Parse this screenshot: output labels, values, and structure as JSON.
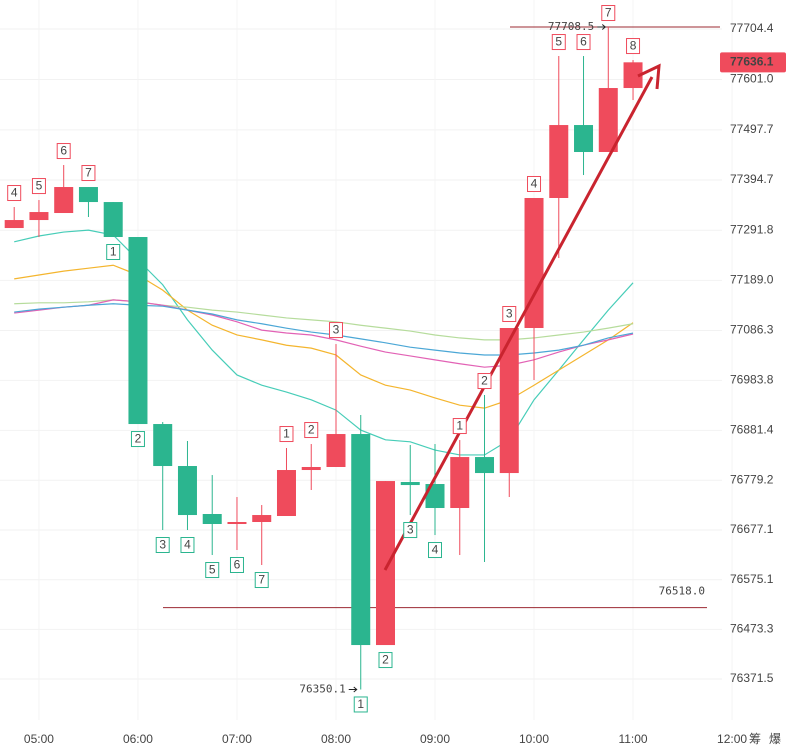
{
  "chart_data": {
    "type": "candlestick",
    "x": [
      285,
      300,
      315,
      330,
      345,
      360,
      375,
      390,
      405,
      420,
      435,
      450,
      465,
      480,
      495,
      510,
      525,
      540,
      555,
      570,
      585,
      600,
      615,
      630,
      645,
      660
    ],
    "open": [
      77296.3,
      77312.7,
      77327.1,
      77380.4,
      77349.6,
      77277.9,
      76894.4,
      76808.3,
      76709.9,
      76689.4,
      76693.5,
      76705.8,
      76800.1,
      76806.3,
      76873.9,
      76441.2,
      76775.5,
      76771.4,
      76722.2,
      76826.7,
      76793.9,
      77091.3,
      77357.9,
      77507.5,
      77452.2,
      77583.4
    ],
    "high": [
      77339.4,
      77353.7,
      77425.5,
      77380.4,
      77349.6,
      77277.9,
      76898.5,
      76859.6,
      76789.8,
      76744.7,
      76728.3,
      76845.2,
      76853.4,
      77058.4,
      76912.9,
      76777.5,
      76851.4,
      76853.4,
      76861.6,
      76953.9,
      77091.3,
      77357.9,
      77649.0,
      77649.0,
      77708.5,
      77640.8
    ],
    "low": [
      77296.3,
      77277.9,
      77327.1,
      77318.9,
      77277.9,
      76894.4,
      76677.1,
      76677.1,
      76625.8,
      76636.1,
      76605.3,
      76705.8,
      76759.1,
      76806.3,
      76350.1,
      76441.2,
      76707.8,
      76666.8,
      76625.8,
      76611.5,
      76744.7,
      76984.6,
      77234.8,
      77405.0,
      77452.2,
      77558.8
    ],
    "close": [
      77312.7,
      77329.1,
      77380.4,
      77349.6,
      77277.9,
      76894.4,
      76808.3,
      76707.8,
      76689.4,
      76693.5,
      76707.8,
      76800.1,
      76806.3,
      76873.9,
      76441.2,
      76777.5,
      76769.3,
      76722.2,
      76826.7,
      76793.9,
      77091.3,
      77357.9,
      77507.5,
      77452.2,
      77583.4,
      77636.1
    ],
    "up_color": "#ef4b5c",
    "down_color": "#2bb58f",
    "ma": [
      {
        "color": "#47cdb8",
        "values": [
          77268,
          77280,
          77288,
          77292,
          77282,
          77231,
          77180,
          77108,
          77046,
          76995,
          76974,
          76960,
          76944,
          76923,
          76882,
          76862,
          76858,
          76841,
          76831,
          76831,
          76862,
          76944,
          77005,
          77067,
          77128,
          77184
        ]
      },
      {
        "color": "#f4b52e",
        "values": [
          77192,
          77200,
          77208,
          77214,
          77220,
          77200,
          77169,
          77128,
          77097,
          77077,
          77067,
          77056,
          77050,
          77036,
          76995,
          76974,
          76964,
          76948,
          76933,
          76927,
          76944,
          76974,
          77005,
          77036,
          77067,
          77102
        ]
      },
      {
        "color": "#b6dc9c",
        "values": [
          77141,
          77143,
          77143,
          77145,
          77149,
          77145,
          77138,
          77134,
          77128,
          77124,
          77118,
          77112,
          77108,
          77104,
          77097,
          77091,
          77085,
          77077,
          77071,
          77067,
          77067,
          77071,
          77077,
          77083,
          77091,
          77100
        ]
      },
      {
        "color": "#e262b5",
        "values": [
          77122,
          77128,
          77134,
          77138,
          77149,
          77145,
          77138,
          77128,
          77118,
          77104,
          77087,
          77081,
          77077,
          77067,
          77054,
          77042,
          77034,
          77026,
          77018,
          77011,
          77015,
          77026,
          77042,
          77056,
          77067,
          77079
        ]
      },
      {
        "color": "#4ba7d6",
        "values": [
          77124,
          77130,
          77134,
          77138,
          77141,
          77138,
          77136,
          77128,
          77120,
          77108,
          77100,
          77091,
          77083,
          77077,
          77069,
          77061,
          77052,
          77046,
          77040,
          77036,
          77036,
          77040,
          77046,
          77056,
          77071,
          77081
        ]
      }
    ],
    "annotations": [
      {
        "x": 285,
        "text": "4",
        "side": "above"
      },
      {
        "x": 300,
        "text": "5",
        "side": "above"
      },
      {
        "x": 315,
        "text": "6",
        "side": "above"
      },
      {
        "x": 330,
        "text": "7",
        "side": "above"
      },
      {
        "x": 345,
        "text": "1",
        "side": "below"
      },
      {
        "x": 360,
        "text": "2",
        "side": "below"
      },
      {
        "x": 375,
        "text": "3",
        "side": "below"
      },
      {
        "x": 390,
        "text": "4",
        "side": "below"
      },
      {
        "x": 405,
        "text": "5",
        "side": "below"
      },
      {
        "x": 420,
        "text": "6",
        "side": "below"
      },
      {
        "x": 435,
        "text": "7",
        "side": "below"
      },
      {
        "x": 450,
        "text": "1",
        "side": "above"
      },
      {
        "x": 465,
        "text": "2",
        "side": "above"
      },
      {
        "x": 480,
        "text": "3",
        "side": "above"
      },
      {
        "x": 495,
        "text": "1",
        "side": "below"
      },
      {
        "x": 510,
        "text": "2",
        "side": "below"
      },
      {
        "x": 525,
        "text": "3",
        "side": "below"
      },
      {
        "x": 540,
        "text": "4",
        "side": "below"
      },
      {
        "x": 555,
        "text": "1",
        "side": "above"
      },
      {
        "x": 570,
        "text": "2",
        "side": "above"
      },
      {
        "x": 585,
        "text": "3",
        "side": "above"
      },
      {
        "x": 600,
        "text": "4",
        "side": "above"
      },
      {
        "x": 615,
        "text": "5",
        "side": "above"
      },
      {
        "x": 630,
        "text": "6",
        "side": "above"
      },
      {
        "x": 645,
        "text": "7",
        "side": "above"
      },
      {
        "x": 660,
        "text": "8",
        "side": "above"
      }
    ],
    "level_line": {
      "value": 76518,
      "label": "76518.0"
    },
    "xlim": [
      276.4,
      753.3
    ],
    "xticks": [
      {
        "value": 300,
        "label": "05:00"
      },
      {
        "value": 360,
        "label": "06:00"
      },
      {
        "value": 420,
        "label": "07:00"
      },
      {
        "value": 480,
        "label": "08:00"
      },
      {
        "value": 540,
        "label": "09:00"
      },
      {
        "value": 600,
        "label": "10:00"
      },
      {
        "value": 660,
        "label": "11:00"
      },
      {
        "value": 720,
        "label": "12:00"
      }
    ],
    "ylim": [
      76287.5,
      77763.9
    ],
    "yticks": [
      77704.4,
      {
        "value": 77601,
        "label": "77601.0"
      },
      77497.7,
      77394.7,
      77291.8,
      {
        "value": 77189,
        "label": "77189.0"
      },
      77086.3,
      76983.8,
      76881.4,
      76779.2,
      76677.1,
      76575.1,
      76473.3,
      76371.5
    ],
    "grid": true,
    "toolbar": [
      "筹",
      "爆"
    ]
  }
}
